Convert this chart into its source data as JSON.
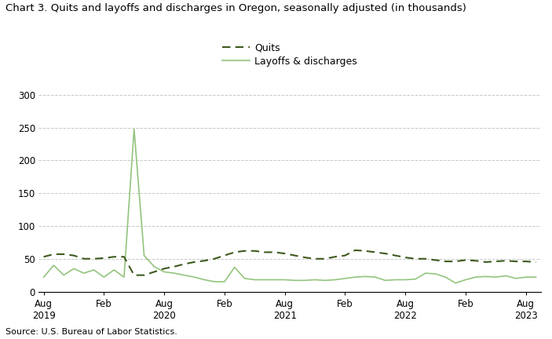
{
  "title": "Chart 3. Quits and layoffs and discharges in Oregon, seasonally adjusted (in thousands)",
  "source": "Source: U.S. Bureau of Labor Statistics.",
  "quits_color": "#3d5a1e",
  "layoffs_color": "#93c47d",
  "background_color": "#ffffff",
  "ylim": [
    0,
    300
  ],
  "yticks": [
    0,
    50,
    100,
    150,
    200,
    250,
    300
  ],
  "grid_color": "#c8c8c8",
  "tick_labels": [
    "Aug\n2019",
    "Feb",
    "Aug\n2020",
    "Feb",
    "Aug\n2021",
    "Feb",
    "Aug\n2022",
    "Feb",
    "Aug\n2023"
  ],
  "xtick_positions": [
    0,
    6,
    12,
    18,
    24,
    30,
    36,
    42,
    48
  ],
  "quits": [
    53,
    57,
    57,
    55,
    50,
    50,
    51,
    53,
    53,
    25,
    25,
    30,
    35,
    38,
    42,
    45,
    47,
    50,
    55,
    60,
    62,
    62,
    60,
    60,
    58,
    55,
    52,
    50,
    50,
    53,
    55,
    63,
    62,
    60,
    58,
    55,
    52,
    50,
    50,
    48,
    46,
    46,
    48,
    47,
    45,
    46,
    47,
    46,
    46,
    45
  ],
  "layoffs": [
    22,
    40,
    25,
    35,
    28,
    33,
    22,
    33,
    22,
    248,
    55,
    38,
    30,
    28,
    25,
    22,
    18,
    15,
    15,
    37,
    20,
    18,
    18,
    18,
    18,
    17,
    17,
    18,
    17,
    18,
    20,
    22,
    23,
    22,
    17,
    18,
    18,
    19,
    28,
    27,
    22,
    13,
    18,
    22,
    23,
    22,
    24,
    20,
    22,
    22
  ],
  "n_points": 50,
  "title_fontsize": 9.5,
  "tick_fontsize": 8.5,
  "source_fontsize": 8,
  "legend_fontsize": 9
}
